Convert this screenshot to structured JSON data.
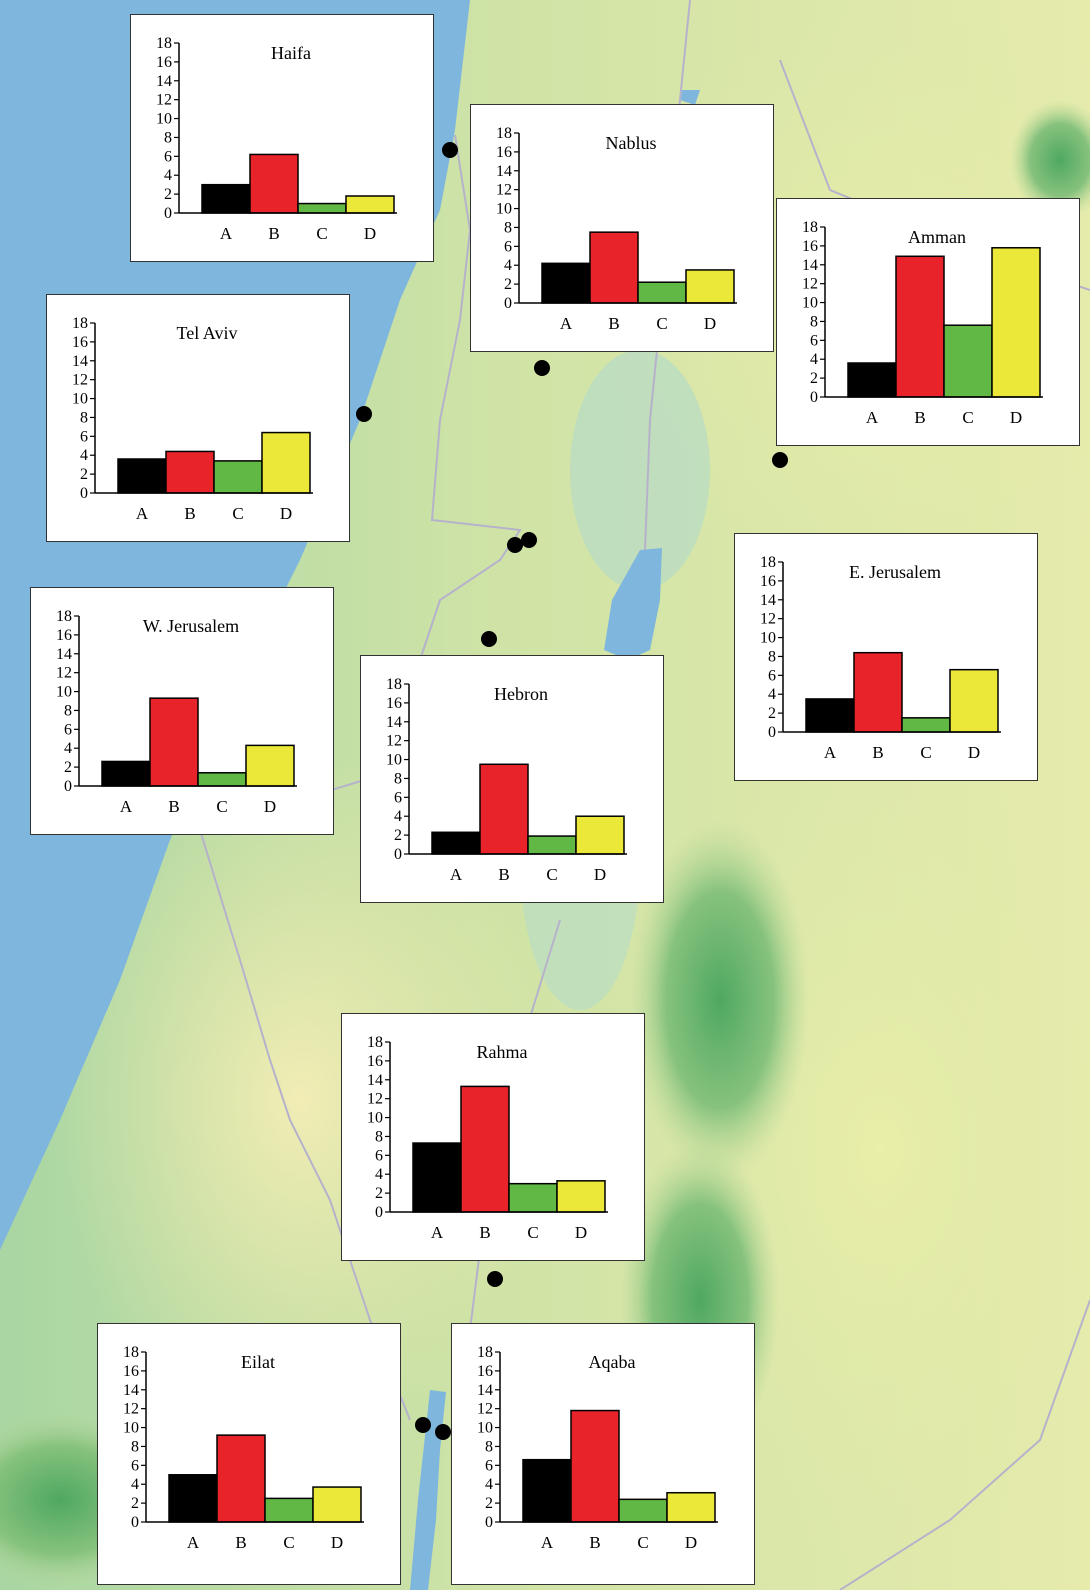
{
  "colors": {
    "A": "#000000",
    "B": "#e8242a",
    "C": "#62b845",
    "D": "#ece83a",
    "sea": "#7fb6dd",
    "border_line": "#b6b2cc"
  },
  "ylim": [
    0,
    18
  ],
  "yticks": [
    0,
    2,
    4,
    6,
    8,
    10,
    12,
    14,
    16,
    18
  ],
  "chart_data": [
    {
      "type": "bar",
      "title": "Haifa",
      "categories": [
        "A",
        "B",
        "C",
        "D"
      ],
      "values": [
        3,
        6.2,
        1,
        1.8
      ],
      "ylim": [
        0,
        18
      ]
    },
    {
      "type": "bar",
      "title": "Nablus",
      "categories": [
        "A",
        "B",
        "C",
        "D"
      ],
      "values": [
        4.2,
        7.5,
        2.2,
        3.5
      ],
      "ylim": [
        0,
        18
      ]
    },
    {
      "type": "bar",
      "title": "Amman",
      "categories": [
        "A",
        "B",
        "C",
        "D"
      ],
      "values": [
        3.6,
        14.9,
        7.6,
        15.8
      ],
      "ylim": [
        0,
        18
      ]
    },
    {
      "type": "bar",
      "title": "Tel Aviv",
      "categories": [
        "A",
        "B",
        "C",
        "D"
      ],
      "values": [
        3.6,
        4.4,
        3.4,
        6.4
      ],
      "ylim": [
        0,
        18
      ]
    },
    {
      "type": "bar",
      "title": "E. Jerusalem",
      "categories": [
        "A",
        "B",
        "C",
        "D"
      ],
      "values": [
        3.5,
        8.4,
        1.5,
        6.6
      ],
      "ylim": [
        0,
        18
      ]
    },
    {
      "type": "bar",
      "title": "W. Jerusalem",
      "categories": [
        "A",
        "B",
        "C",
        "D"
      ],
      "values": [
        2.6,
        9.3,
        1.4,
        4.3
      ],
      "ylim": [
        0,
        18
      ]
    },
    {
      "type": "bar",
      "title": "Hebron",
      "categories": [
        "A",
        "B",
        "C",
        "D"
      ],
      "values": [
        2.3,
        9.5,
        1.9,
        4
      ],
      "ylim": [
        0,
        18
      ]
    },
    {
      "type": "bar",
      "title": "Rahma",
      "categories": [
        "A",
        "B",
        "C",
        "D"
      ],
      "values": [
        7.3,
        13.3,
        3,
        3.3
      ],
      "ylim": [
        0,
        18
      ]
    },
    {
      "type": "bar",
      "title": "Eilat",
      "categories": [
        "A",
        "B",
        "C",
        "D"
      ],
      "values": [
        5,
        9.2,
        2.5,
        3.7
      ],
      "ylim": [
        0,
        18
      ]
    },
    {
      "type": "bar",
      "title": "Aqaba",
      "categories": [
        "A",
        "B",
        "C",
        "D"
      ],
      "values": [
        6.6,
        11.8,
        2.4,
        3.1
      ],
      "ylim": [
        0,
        18
      ]
    }
  ]
}
